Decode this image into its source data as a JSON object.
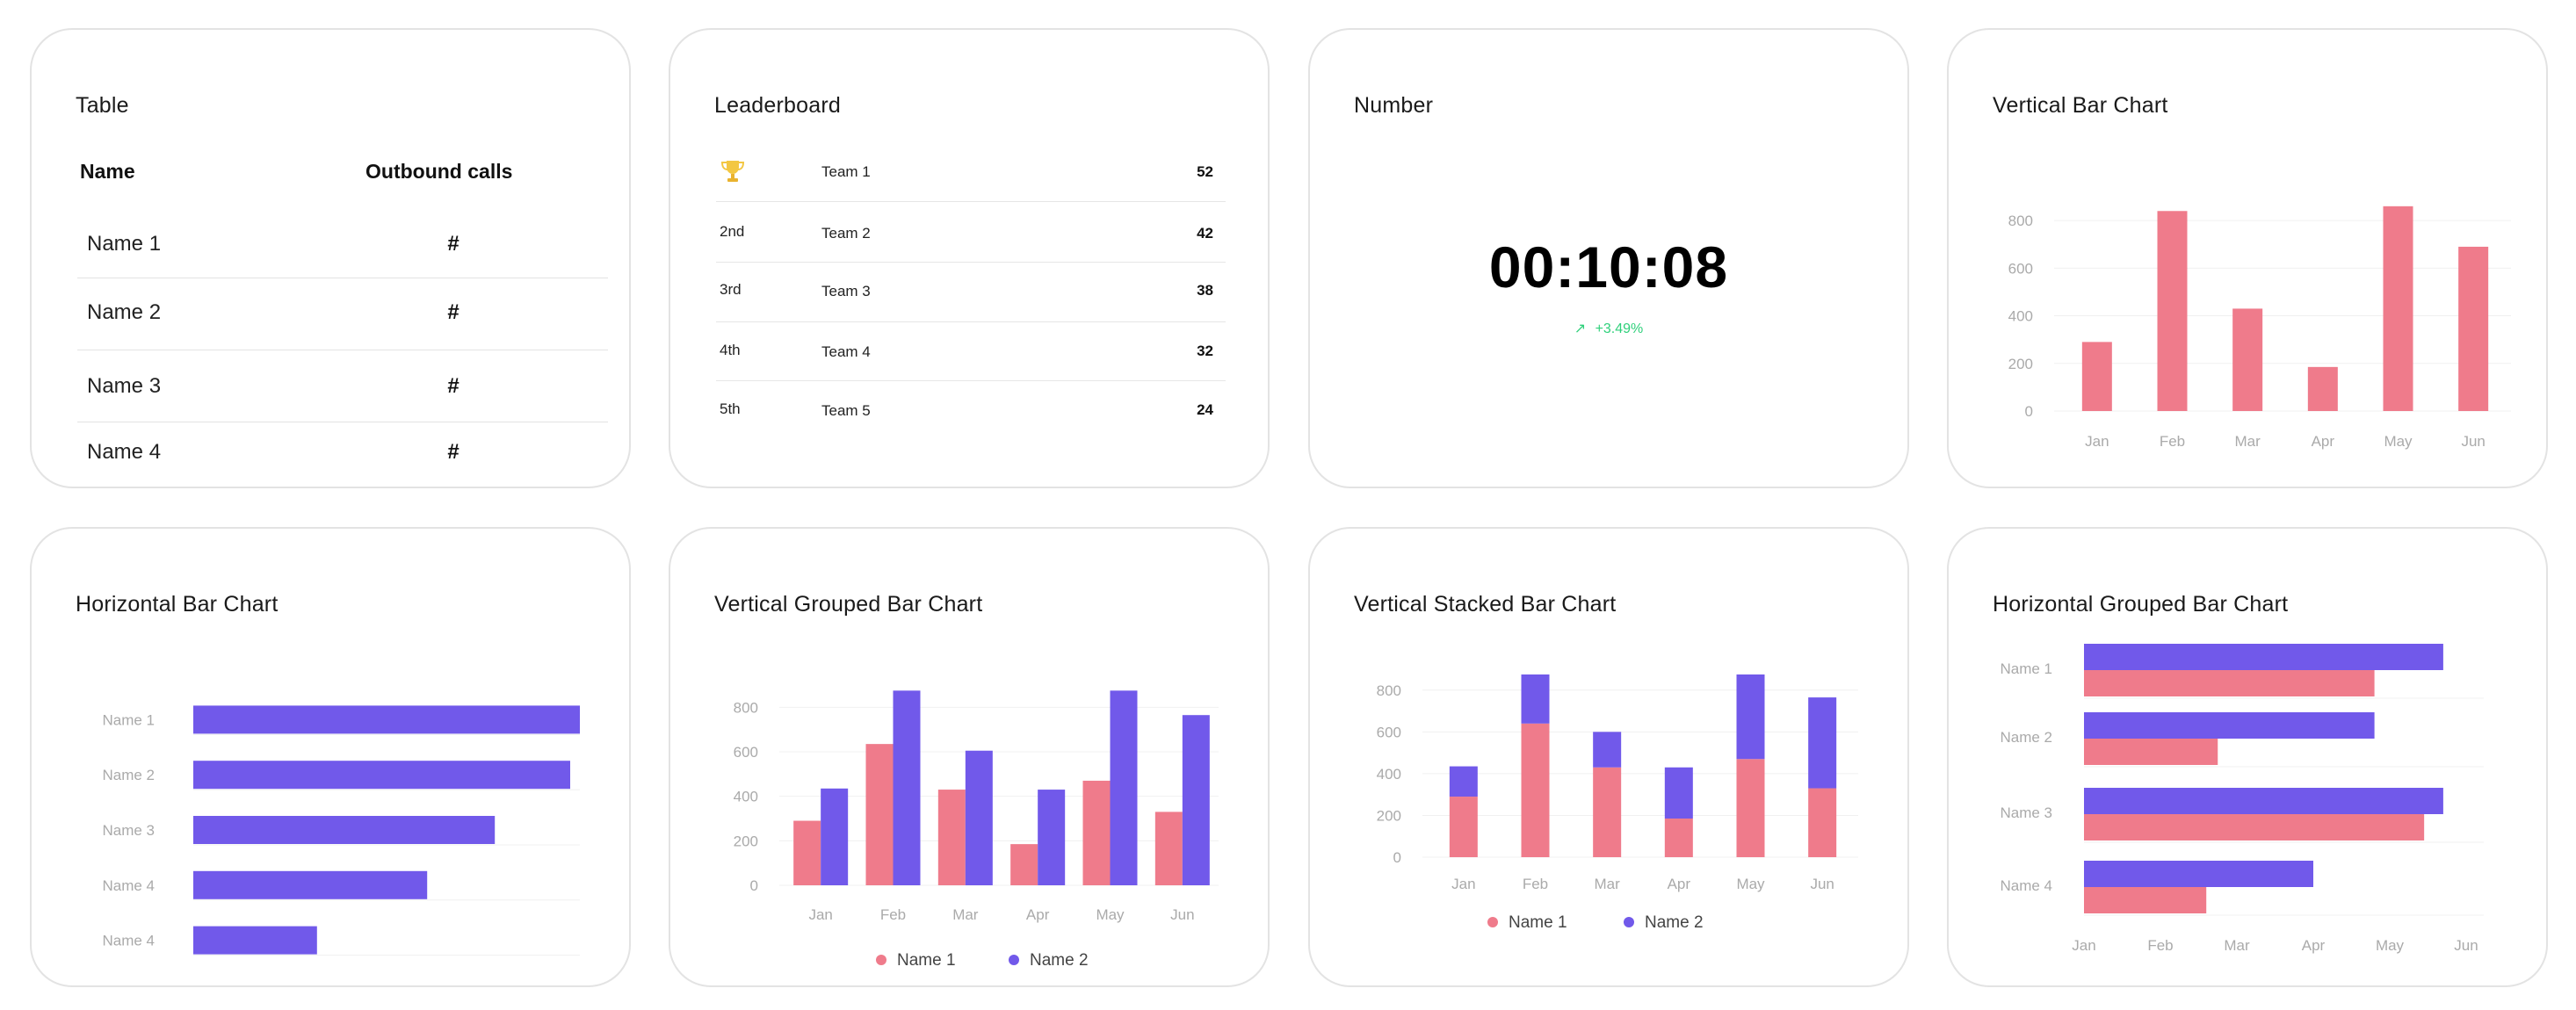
{
  "colors": {
    "pink": "#ef7b8b",
    "purple": "#7159ea",
    "grid": "#f0f0f0",
    "axis_text": "#aaaaaa",
    "green": "#2fd07b",
    "trophy": "#f3c742"
  },
  "table": {
    "title": "Table",
    "col_name": "Name",
    "col_calls": "Outbound calls",
    "rows": [
      {
        "name": "Name 1",
        "value": "#"
      },
      {
        "name": "Name 2",
        "value": "#"
      },
      {
        "name": "Name 3",
        "value": "#"
      },
      {
        "name": "Name 4",
        "value": "#"
      }
    ]
  },
  "leaderboard": {
    "title": "Leaderboard",
    "rows": [
      {
        "rank": "",
        "icon": "trophy-icon",
        "team": "Team 1",
        "score": "52"
      },
      {
        "rank": "2nd",
        "team": "Team 2",
        "score": "42"
      },
      {
        "rank": "3rd",
        "team": "Team 3",
        "score": "38"
      },
      {
        "rank": "4th",
        "team": "Team 4",
        "score": "32"
      },
      {
        "rank": "5th",
        "team": "Team 5",
        "score": "24"
      }
    ]
  },
  "number": {
    "title": "Number",
    "value": "00:10:08",
    "delta_icon": "trend-up-arrow-icon",
    "delta_arrow": "↗",
    "delta": "+3.49%"
  },
  "chart_data": [
    {
      "id": "vbar",
      "type": "bar",
      "title": "Vertical Bar Chart",
      "categories": [
        "Jan",
        "Feb",
        "Mar",
        "Apr",
        "May",
        "Jun"
      ],
      "values": [
        290,
        840,
        430,
        185,
        860,
        690
      ],
      "ylim": [
        0,
        900
      ],
      "yticks": [
        0,
        200,
        400,
        600,
        800
      ],
      "xlabel": "",
      "ylabel": "",
      "grid": true
    },
    {
      "id": "hbar",
      "type": "bar",
      "orientation": "horizontal",
      "title": "Horizontal Bar Chart",
      "categories": [
        "Name 1",
        "Name 2",
        "Name 3",
        "Name 4",
        "Name 4"
      ],
      "values": [
        100,
        97.5,
        78,
        60.5,
        32
      ],
      "xlim": [
        0,
        100
      ],
      "grid": true
    },
    {
      "id": "vgroup",
      "type": "bar",
      "mode": "grouped",
      "title": "Vertical Grouped Bar Chart",
      "categories": [
        "Jan",
        "Feb",
        "Mar",
        "Apr",
        "May",
        "Jun"
      ],
      "series": [
        {
          "name": "Name 1",
          "color": "#ef7b8b",
          "values": [
            290,
            635,
            430,
            185,
            470,
            330
          ]
        },
        {
          "name": "Name 2",
          "color": "#7159ea",
          "values": [
            435,
            875,
            605,
            430,
            875,
            765
          ]
        }
      ],
      "ylim": [
        0,
        900
      ],
      "yticks": [
        0,
        200,
        400,
        600,
        800
      ],
      "grid": true,
      "legend": "bottom"
    },
    {
      "id": "vstack",
      "type": "bar",
      "mode": "stacked",
      "title": "Vertical Stacked Bar Chart",
      "categories": [
        "Jan",
        "Feb",
        "Mar",
        "Apr",
        "May",
        "Jun"
      ],
      "series": [
        {
          "name": "Name 1",
          "color": "#ef7b8b",
          "values": [
            290,
            640,
            430,
            185,
            470,
            330
          ]
        },
        {
          "name": "Name 2",
          "color": "#7159ea",
          "values": [
            145,
            235,
            170,
            245,
            405,
            435
          ]
        }
      ],
      "ylim": [
        0,
        900
      ],
      "yticks": [
        0,
        200,
        400,
        600,
        800
      ],
      "grid": true,
      "legend": "bottom"
    },
    {
      "id": "hgroup",
      "type": "bar",
      "mode": "grouped",
      "orientation": "horizontal",
      "title": "Horizontal Grouped Bar Chart",
      "categories": [
        "Name 1",
        "Name 2",
        "Name 3",
        "Name 4"
      ],
      "xticks": [
        "Jan",
        "Feb",
        "Mar",
        "Apr",
        "May",
        "Jun"
      ],
      "series": [
        {
          "name": "Name 2",
          "color": "#7159ea",
          "values": [
            4.7,
            3.8,
            4.7,
            3.0
          ]
        },
        {
          "name": "Name 1",
          "color": "#ef7b8b",
          "values": [
            3.8,
            1.75,
            4.45,
            1.6
          ]
        }
      ],
      "xlim": [
        0,
        5
      ],
      "grid": true
    }
  ]
}
